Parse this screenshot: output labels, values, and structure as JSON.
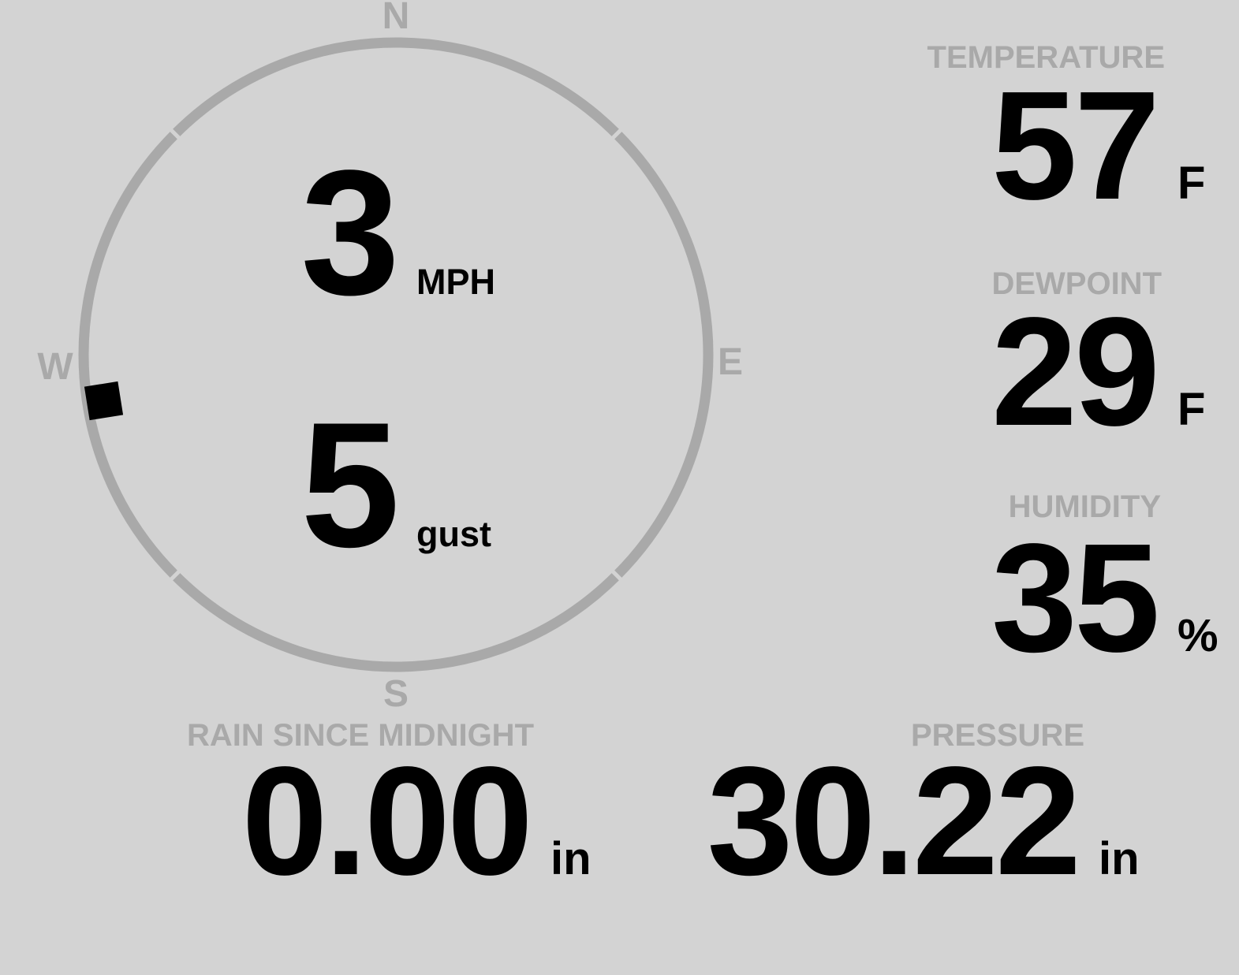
{
  "colors": {
    "background": "#d3d3d3",
    "muted_gray": "#a9a9a9",
    "value_black": "#000000"
  },
  "wind": {
    "speed": "3",
    "speed_unit": "MPH",
    "gust": "5",
    "gust_unit": "gust",
    "direction_deg": 261,
    "compass": {
      "north": "N",
      "east": "E",
      "south": "S",
      "west": "W"
    }
  },
  "metrics": {
    "temperature": {
      "label": "TEMPERATURE",
      "value": "57",
      "unit": "F"
    },
    "dewpoint": {
      "label": "DEWPOINT",
      "value": "29",
      "unit": "F"
    },
    "humidity": {
      "label": "HUMIDITY",
      "value": "35",
      "unit": "%"
    },
    "rain": {
      "label": "RAIN SINCE MIDNIGHT",
      "value": "0.00",
      "unit": "in"
    },
    "pressure": {
      "label": "PRESSURE",
      "value": "30.22",
      "unit": "in"
    }
  }
}
